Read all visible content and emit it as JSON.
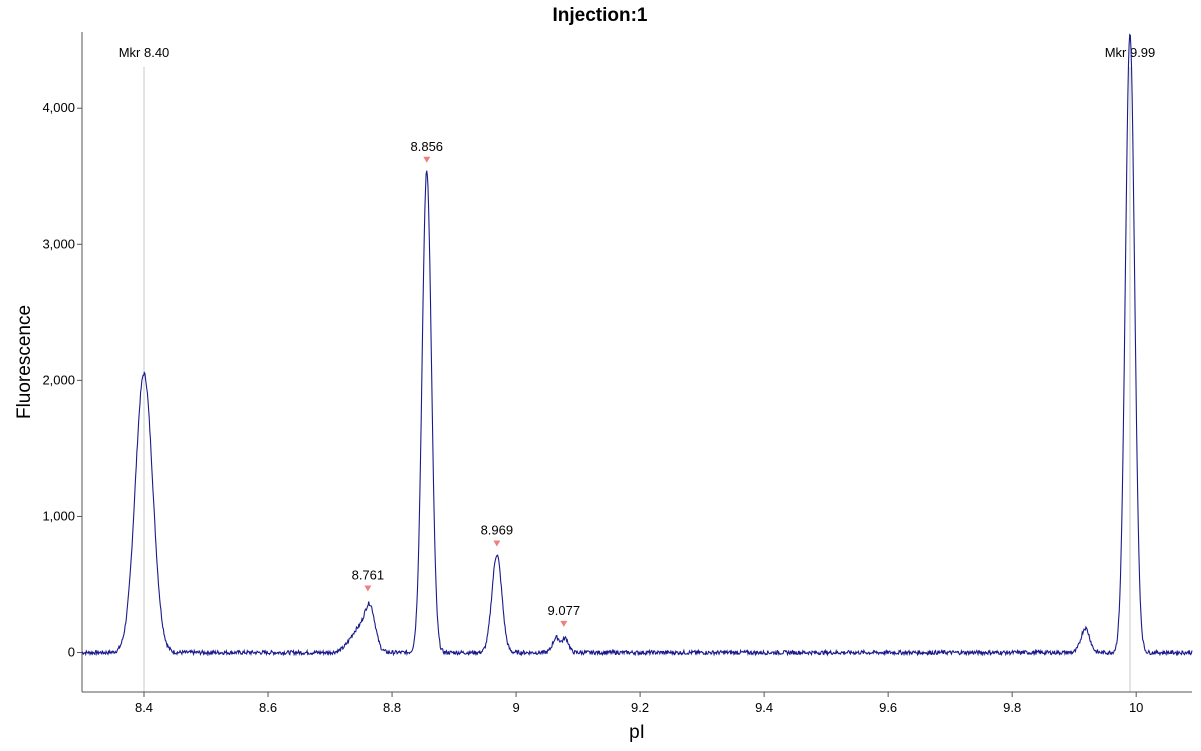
{
  "chart_data": {
    "type": "line",
    "title": "Injection:1",
    "xlabel": "pI",
    "ylabel": "Fluorescence",
    "xlim": [
      8.3,
      10.09
    ],
    "ylim": [
      -290,
      4560
    ],
    "x_ticks": [
      8.4,
      8.6,
      8.8,
      9,
      9.2,
      9.4,
      9.6,
      9.8,
      10
    ],
    "x_tick_labels": [
      "8.4",
      "8.6",
      "8.8",
      "9",
      "9.2",
      "9.4",
      "9.6",
      "9.8",
      "10"
    ],
    "y_ticks": [
      0,
      1000,
      2000,
      3000,
      4000
    ],
    "y_tick_labels": [
      "0",
      "1,000",
      "2,000",
      "3,000",
      "4,000"
    ],
    "grid": false,
    "line_color": "#1a1a8c",
    "marker_color": "#f08080",
    "series": [
      {
        "peaks": [
          {
            "center": 8.4,
            "height": 2050,
            "width": 0.014
          },
          {
            "center": 8.748,
            "height": 180,
            "width": 0.015
          },
          {
            "center": 8.765,
            "height": 260,
            "width": 0.008
          },
          {
            "center": 8.856,
            "height": 3540,
            "width": 0.0075
          },
          {
            "center": 8.969,
            "height": 720,
            "width": 0.008
          },
          {
            "center": 9.065,
            "height": 110,
            "width": 0.006
          },
          {
            "center": 9.08,
            "height": 100,
            "width": 0.005
          },
          {
            "center": 9.918,
            "height": 180,
            "width": 0.007
          },
          {
            "center": 9.99,
            "height": 4540,
            "width": 0.0075
          }
        ],
        "baseline": 0,
        "noise_amplitude": 15
      }
    ],
    "annotations": [
      {
        "x": 8.761,
        "y": 390,
        "label": "8.761"
      },
      {
        "x": 8.856,
        "y": 3540,
        "label": "8.856"
      },
      {
        "x": 8.969,
        "y": 720,
        "label": "8.969"
      },
      {
        "x": 9.077,
        "y": 130,
        "label": "9.077"
      }
    ],
    "markers": [
      {
        "x": 8.4,
        "label": "Mkr 8.40"
      },
      {
        "x": 9.99,
        "label": "Mkr 9.99"
      }
    ]
  }
}
